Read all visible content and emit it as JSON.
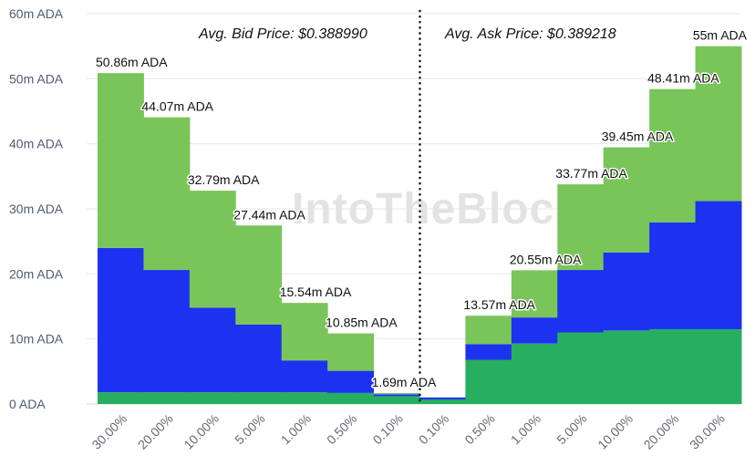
{
  "watermark": "IntoTheBlock",
  "chart_data": {
    "type": "bar",
    "stacked": true,
    "categories": [
      "30.00%",
      "20.00%",
      "10.00%",
      "5.00%",
      "1.00%",
      "0.50%",
      "0.10%",
      "0.10%",
      "0.50%",
      "1.00%",
      "5.00%",
      "10.00%",
      "20.00%",
      "30.00%"
    ],
    "sides": [
      "bid",
      "bid",
      "bid",
      "bid",
      "bid",
      "bid",
      "bid",
      "ask",
      "ask",
      "ask",
      "ask",
      "ask",
      "ask",
      "ask"
    ],
    "ylim": [
      0,
      60
    ],
    "yticks": [
      0,
      10,
      20,
      30,
      40,
      50,
      60
    ],
    "ytick_labels": [
      "0 ADA",
      "10m ADA",
      "20m ADA",
      "30m ADA",
      "40m ADA",
      "50m ADA",
      "60m ADA"
    ],
    "totals": [
      50.86,
      44.07,
      32.79,
      27.44,
      15.54,
      10.85,
      1.69,
      1.0,
      13.57,
      20.55,
      33.77,
      39.45,
      48.41,
      55.0
    ],
    "total_labels": [
      "50.86m ADA",
      "44.07m ADA",
      "32.79m ADA",
      "27.44m ADA",
      "15.54m ADA",
      "10.85m ADA",
      "1.69m ADA",
      "",
      "13.57m ADA",
      "20.55m ADA",
      "33.77m ADA",
      "39.45m ADA",
      "48.41m ADA",
      "55m ADA"
    ],
    "series": [
      {
        "color": "#27ae60",
        "values": [
          1.8,
          1.8,
          1.8,
          1.8,
          1.8,
          1.7,
          1.2,
          0.7,
          6.8,
          9.3,
          11.0,
          11.3,
          11.5,
          11.5
        ]
      },
      {
        "color": "#1c32f0",
        "values": [
          22.2,
          18.8,
          13.0,
          10.4,
          4.9,
          3.4,
          0.3,
          0.3,
          2.4,
          4.0,
          9.6,
          12.0,
          16.4,
          19.7
        ]
      },
      {
        "color": "#7ac55a",
        "values": [
          26.86,
          23.47,
          17.99,
          15.24,
          8.84,
          5.75,
          0.19,
          0.0,
          4.37,
          7.25,
          13.17,
          16.15,
          20.51,
          23.8
        ]
      }
    ],
    "avg_bid_label": "Avg. Bid Price: $0.388990",
    "avg_ask_label": "Avg. Ask Price: $0.389218",
    "grid": true,
    "legend": "none"
  }
}
